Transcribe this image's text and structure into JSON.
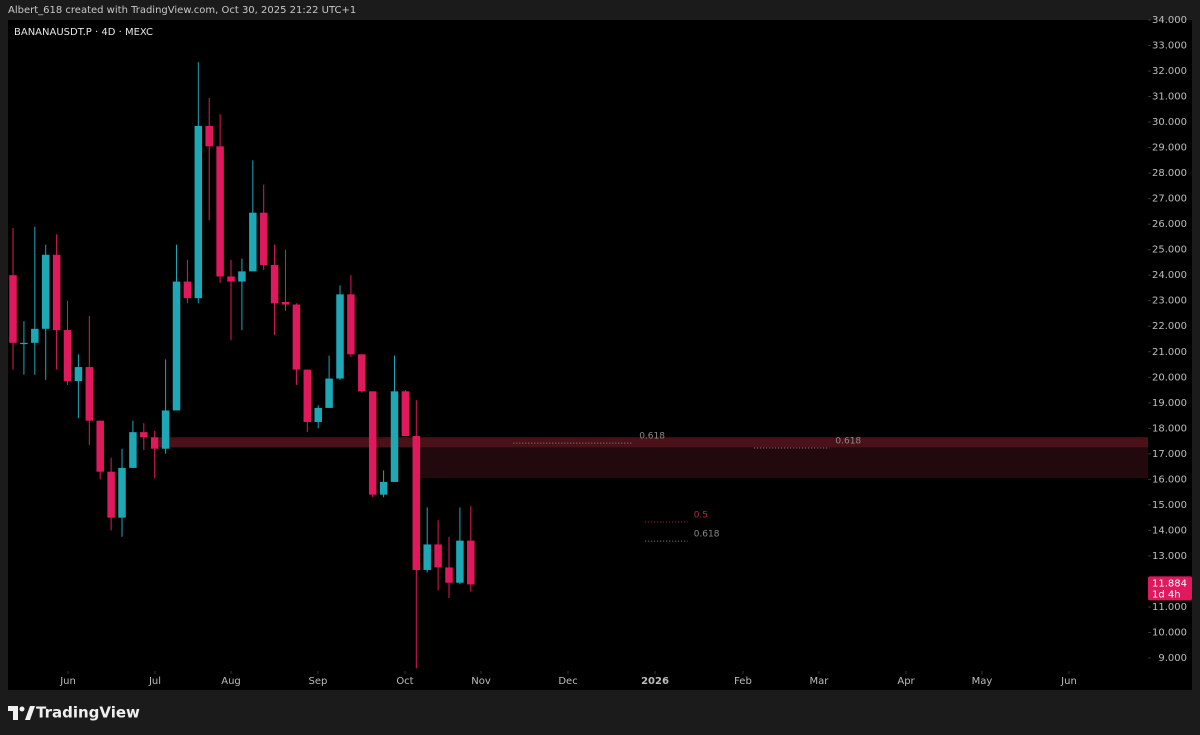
{
  "header": "Albert_618 created with TradingView.com, Oct 30, 2025 21:22 UTC+1",
  "footer": "TradingView",
  "chart_data": {
    "type": "candlestick",
    "title": "BANANAUSDT.P · 4D · MEXC",
    "up_color": "#1ea7b5",
    "down_color": "#e0195e",
    "open": [
      24.0,
      21.3,
      21.35,
      21.9,
      24.8,
      21.85,
      19.85,
      20.4,
      18.3,
      16.3,
      14.5,
      16.45,
      17.85,
      17.65,
      17.2,
      18.7,
      23.75,
      23.1,
      29.85,
      29.05,
      23.95,
      23.75,
      24.15,
      26.45,
      24.4,
      22.95,
      22.85,
      20.3,
      18.25,
      18.8,
      19.95,
      23.25,
      20.9,
      19.45,
      15.4,
      15.9,
      19.45,
      17.7,
      12.45,
      13.45,
      12.55,
      11.95,
      13.6
    ],
    "high": [
      25.85,
      22.2,
      25.9,
      25.2,
      25.6,
      23.0,
      20.9,
      22.4,
      18.3,
      16.85,
      17.2,
      18.3,
      18.2,
      17.9,
      20.7,
      25.2,
      24.6,
      32.35,
      30.95,
      30.3,
      24.6,
      24.65,
      28.5,
      27.55,
      25.2,
      25.0,
      22.9,
      20.3,
      18.9,
      20.85,
      23.6,
      24.0,
      20.9,
      19.45,
      16.35,
      20.85,
      19.5,
      19.1,
      14.9,
      14.4,
      13.75,
      14.9,
      14.95
    ],
    "low": [
      20.3,
      20.1,
      20.1,
      19.9,
      20.3,
      19.7,
      18.4,
      17.35,
      16.0,
      14.0,
      13.75,
      16.45,
      17.15,
      16.05,
      17.0,
      18.7,
      22.9,
      22.9,
      26.15,
      23.7,
      21.45,
      21.85,
      24.15,
      24.2,
      21.65,
      22.6,
      19.7,
      17.85,
      18.0,
      18.8,
      19.9,
      20.8,
      19.4,
      15.3,
      15.3,
      15.9,
      17.7,
      8.6,
      12.35,
      11.65,
      11.35,
      11.9,
      11.6
    ],
    "close": [
      21.35,
      21.35,
      21.9,
      24.8,
      21.85,
      19.85,
      20.4,
      18.3,
      16.3,
      14.5,
      16.45,
      17.85,
      17.65,
      17.2,
      18.7,
      23.75,
      23.1,
      29.85,
      29.05,
      23.95,
      23.75,
      24.15,
      26.45,
      24.4,
      22.9,
      22.85,
      20.3,
      18.25,
      18.8,
      19.95,
      23.25,
      20.9,
      19.45,
      15.4,
      15.9,
      19.45,
      17.7,
      12.45,
      13.45,
      12.55,
      11.95,
      13.6,
      11.884
    ],
    "xlim": [
      -0.46,
      104.13
    ],
    "ylim": [
      8.53,
      34
    ],
    "xticks": [
      {
        "value": 5.05,
        "label": "Jun"
      },
      {
        "value": 13.03,
        "label": "Jul"
      },
      {
        "value": 20.0,
        "label": "Aug"
      },
      {
        "value": 27.98,
        "label": "Sep"
      },
      {
        "value": 35.96,
        "label": "Oct"
      },
      {
        "value": 42.94,
        "label": "Nov"
      },
      {
        "value": 50.92,
        "label": "Dec"
      },
      {
        "value": 58.9,
        "label": "2026"
      },
      {
        "value": 66.97,
        "label": "Feb"
      },
      {
        "value": 73.94,
        "label": "Mar"
      },
      {
        "value": 81.93,
        "label": "Apr"
      },
      {
        "value": 88.9,
        "label": "May"
      },
      {
        "value": 96.88,
        "label": "Jun"
      }
    ],
    "yticks": [
      {
        "value": 34,
        "label": "34.000"
      },
      {
        "value": 33,
        "label": "33.000"
      },
      {
        "value": 32,
        "label": "32.000"
      },
      {
        "value": 31,
        "label": "31.000"
      },
      {
        "value": 30,
        "label": "30.000"
      },
      {
        "value": 29,
        "label": "29.000"
      },
      {
        "value": 28,
        "label": "28.000"
      },
      {
        "value": 27,
        "label": "27.000"
      },
      {
        "value": 26,
        "label": "26.000"
      },
      {
        "value": 25,
        "label": "25.000"
      },
      {
        "value": 24,
        "label": "24.000"
      },
      {
        "value": 23,
        "label": "23.000"
      },
      {
        "value": 22,
        "label": "22.000"
      },
      {
        "value": 21,
        "label": "21.000"
      },
      {
        "value": 20,
        "label": "20.000"
      },
      {
        "value": 19,
        "label": "19.000"
      },
      {
        "value": 18,
        "label": "18.000"
      },
      {
        "value": 17,
        "label": "17.000"
      },
      {
        "value": 16,
        "label": "16.000"
      },
      {
        "value": 15,
        "label": "15.000"
      },
      {
        "value": 14,
        "label": "14.000"
      },
      {
        "value": 13,
        "label": "13.000"
      },
      {
        "value": 12,
        "label": "12.000"
      },
      {
        "value": 11,
        "label": "11.000"
      },
      {
        "value": 10,
        "label": "10.000"
      },
      {
        "value": 9,
        "label": "9.000"
      }
    ],
    "zones": [
      {
        "top": 17.65,
        "bottom": 17.25,
        "from": 13.4,
        "color": "#4a1119"
      },
      {
        "top": 17.25,
        "bottom": 16.05,
        "from": 36.8,
        "color": "#22090d"
      }
    ],
    "annotations": [
      {
        "label": "0.618",
        "level": 17.42,
        "from": 45.9,
        "to": 56.9,
        "color": "#8a8a8a"
      },
      {
        "label": "0.618",
        "level": 17.23,
        "from": 68.0,
        "to": 74.9,
        "color": "#8a8a8a"
      },
      {
        "label": "0.5",
        "level": 14.33,
        "from": 58.0,
        "to": 61.9,
        "color": "#b3283f"
      },
      {
        "label": "0.618",
        "level": 13.58,
        "from": 58.0,
        "to": 61.9,
        "color": "#8a8a8a"
      }
    ],
    "last_price": {
      "value": 11.884,
      "label": "11.884"
    },
    "countdown": "1d 4h"
  }
}
